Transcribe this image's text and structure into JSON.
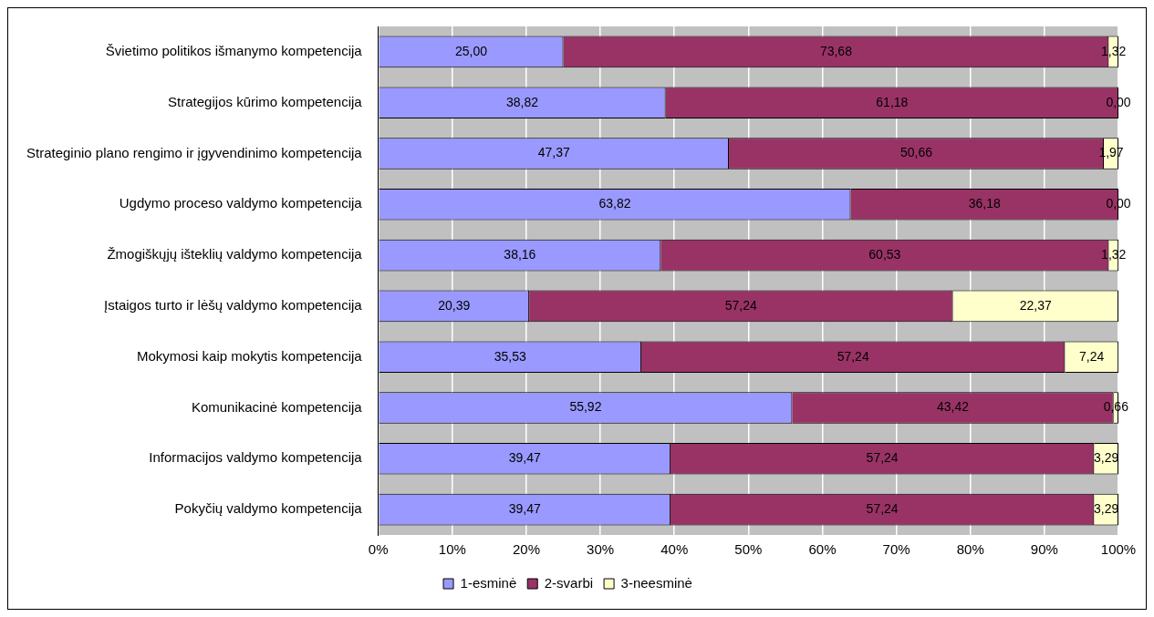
{
  "chart_data": {
    "type": "bar",
    "orientation": "horizontal",
    "stacked": true,
    "categories": [
      "Švietimo politikos išmanymo kompetencija",
      "Strategijos kūrimo kompetencija",
      "Strateginio plano rengimo ir įgyvendinimo kompetencija",
      "Ugdymo proceso valdymo kompetencija",
      "Žmogiškųjų išteklių valdymo kompetencija",
      "Įstaigos turto ir lėšų valdymo kompetencija",
      "Mokymosi kaip mokytis kompetencija",
      "Komunikacinė kompetencija",
      "Informacijos valdymo kompetencija",
      "Pokyčių valdymo kompetencija"
    ],
    "series": [
      {
        "name": "1-esminė",
        "color": "#9999ff",
        "values": [
          25.0,
          38.82,
          47.37,
          63.82,
          38.16,
          20.39,
          35.53,
          55.92,
          39.47,
          39.47
        ],
        "value_labels": [
          "25,00",
          "38,82",
          "47,37",
          "63,82",
          "38,16",
          "20,39",
          "35,53",
          "55,92",
          "39,47",
          "39,47"
        ]
      },
      {
        "name": "2-svarbi",
        "color": "#993366",
        "values": [
          73.68,
          61.18,
          50.66,
          36.18,
          60.53,
          57.24,
          57.24,
          43.42,
          57.24,
          57.24
        ],
        "value_labels": [
          "73,68",
          "61,18",
          "50,66",
          "36,18",
          "60,53",
          "57,24",
          "57,24",
          "43,42",
          "57,24",
          "57,24"
        ]
      },
      {
        "name": "3-neesminė",
        "color": "#ffffcc",
        "values": [
          1.32,
          0.0,
          1.97,
          0.0,
          1.32,
          22.37,
          7.24,
          0.66,
          3.29,
          3.29
        ],
        "value_labels": [
          "1,32",
          "0,00",
          "1,97",
          "0,00",
          "1,32",
          "22,37",
          "7,24",
          "0,66",
          "3,29",
          "3,29"
        ]
      }
    ],
    "xlim": [
      0,
      100
    ],
    "xticks": [
      {
        "value": 0,
        "label": "0%"
      },
      {
        "value": 10,
        "label": "10%"
      },
      {
        "value": 20,
        "label": "20%"
      },
      {
        "value": 30,
        "label": "30%"
      },
      {
        "value": 40,
        "label": "40%"
      },
      {
        "value": 50,
        "label": "50%"
      },
      {
        "value": 60,
        "label": "60%"
      },
      {
        "value": 70,
        "label": "70%"
      },
      {
        "value": 80,
        "label": "80%"
      },
      {
        "value": 90,
        "label": "90%"
      },
      {
        "value": 100,
        "label": "100%"
      }
    ],
    "grid": "x",
    "legend": "bottom"
  }
}
